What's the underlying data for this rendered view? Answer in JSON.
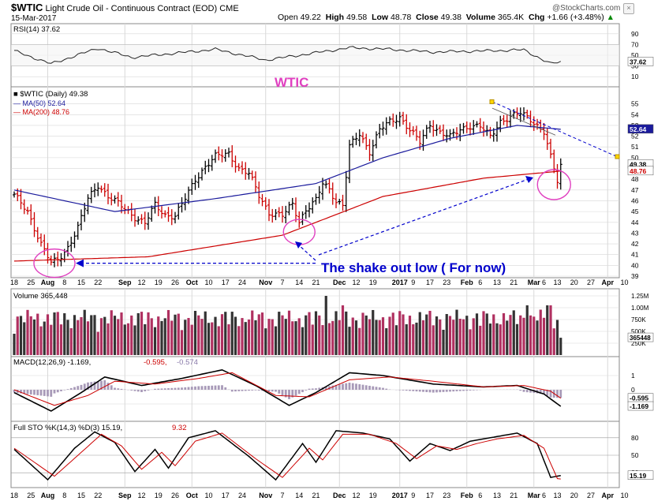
{
  "header": {
    "symbol": "$WTIC",
    "name": "Light Crude Oil - Continuous Contract (EOD)",
    "exchange": "CME",
    "date": "15-Mar-2017",
    "open_label": "Open",
    "open": "49.22",
    "high_label": "High",
    "high": "49.58",
    "low_label": "Low",
    "low": "48.78",
    "close_label": "Close",
    "close": "49.38",
    "volume_label": "Volume",
    "volume": "365.4K",
    "chg_label": "Chg",
    "chg": "+1.66 (+3.48%)",
    "up_arrow": "▲",
    "brand": "@StockCharts.com"
  },
  "colors": {
    "price_bar": "#000000",
    "down_bar": "#cc0000",
    "ma50": "#1a1a9c",
    "ma200": "#cc0000",
    "annotation": "#0000cc",
    "highlight": "#e040c0",
    "volume_up": "#333333",
    "volume_down": "#b03060",
    "grid": "#d8d8d8"
  },
  "annotations": {
    "title": "WTIC",
    "shakeout": "The shake out low  ( For now)"
  },
  "x_axis": {
    "ticks": [
      {
        "i": 0,
        "label": "18"
      },
      {
        "i": 5,
        "label": "25"
      },
      {
        "i": 10,
        "label": "Aug",
        "bold": true
      },
      {
        "i": 15,
        "label": "8"
      },
      {
        "i": 20,
        "label": "15"
      },
      {
        "i": 25,
        "label": "22"
      },
      {
        "i": 33,
        "label": "Sep",
        "bold": true
      },
      {
        "i": 38,
        "label": "12"
      },
      {
        "i": 43,
        "label": "19"
      },
      {
        "i": 48,
        "label": "26"
      },
      {
        "i": 53,
        "label": "Oct",
        "bold": true
      },
      {
        "i": 58,
        "label": "10"
      },
      {
        "i": 63,
        "label": "17"
      },
      {
        "i": 68,
        "label": "24"
      },
      {
        "i": 75,
        "label": "Nov",
        "bold": true
      },
      {
        "i": 80,
        "label": "7"
      },
      {
        "i": 85,
        "label": "14"
      },
      {
        "i": 90,
        "label": "21"
      },
      {
        "i": 97,
        "label": "Dec",
        "bold": true
      },
      {
        "i": 102,
        "label": "12"
      },
      {
        "i": 107,
        "label": "19"
      },
      {
        "i": 115,
        "label": "2017",
        "bold": true
      },
      {
        "i": 119,
        "label": "9"
      },
      {
        "i": 124,
        "label": "17"
      },
      {
        "i": 129,
        "label": "23"
      },
      {
        "i": 135,
        "label": "Feb",
        "bold": true
      },
      {
        "i": 139,
        "label": "6"
      },
      {
        "i": 144,
        "label": "13"
      },
      {
        "i": 149,
        "label": "21"
      },
      {
        "i": 155,
        "label": "Mar",
        "bold": true
      },
      {
        "i": 158,
        "label": "6"
      },
      {
        "i": 162,
        "label": "13"
      },
      {
        "i": 167,
        "label": "20"
      },
      {
        "i": 172,
        "label": "27"
      },
      {
        "i": 177,
        "label": "Apr",
        "bold": true
      },
      {
        "i": 182,
        "label": "10"
      }
    ]
  },
  "panels": {
    "rsi": {
      "legend": "RSI(14) 37.62",
      "ticks": [
        "90",
        "70",
        "50",
        "30",
        "10"
      ],
      "last": "37.62"
    },
    "price": {
      "legend_sym": "$WTIC (Daily) 49.38",
      "legend_ma50": "MA(50) 52.64",
      "legend_ma200": "MA(200) 48.76",
      "ticks": [
        "55",
        "54",
        "53",
        "52",
        "51",
        "50",
        "49",
        "48",
        "47",
        "46",
        "45",
        "44",
        "43",
        "42",
        "41",
        "40",
        "39"
      ],
      "last_price": "49.38",
      "last_ma50": "52.64",
      "last_ma200": "48.76"
    },
    "volume": {
      "legend": "Volume 365,448",
      "ticks": [
        "1.25M",
        "1.00M",
        "750K",
        "500K",
        "250K"
      ],
      "last": "365448"
    },
    "macd": {
      "legend_main": "MACD(12,26,9) -1.169,",
      "legend_signal": "-0.595,",
      "legend_hist": "-0.574",
      "ticks": [
        "1",
        "0",
        "-1"
      ],
      "last_signal": "-0.595",
      "last_macd": "-1.169"
    },
    "sto": {
      "legend_main": "Full STO %K(14,3) %D(3) 15.19,",
      "legend_d": "9.32",
      "ticks": [
        "80",
        "50",
        "20"
      ],
      "last": "15.19"
    }
  },
  "chart_data": {
    "type": "ohlc",
    "title": "$WTIC Light Crude Oil - Continuous Contract (EOD) CME",
    "n_bars": 164,
    "price_ylim": [
      39,
      56
    ],
    "anchors_close": [
      [
        0,
        46.5
      ],
      [
        4,
        45.0
      ],
      [
        8,
        42.0
      ],
      [
        11,
        40.2
      ],
      [
        13,
        40.5
      ],
      [
        16,
        41.7
      ],
      [
        19,
        43.5
      ],
      [
        22,
        46.2
      ],
      [
        25,
        47.5
      ],
      [
        28,
        46.4
      ],
      [
        32,
        45.5
      ],
      [
        36,
        44.5
      ],
      [
        39,
        43.9
      ],
      [
        42,
        45.6
      ],
      [
        45,
        44.7
      ],
      [
        48,
        44.6
      ],
      [
        51,
        46.2
      ],
      [
        54,
        48.0
      ],
      [
        57,
        49.2
      ],
      [
        60,
        50.1
      ],
      [
        64,
        50.4
      ],
      [
        67,
        49.0
      ],
      [
        70,
        48.5
      ],
      [
        73,
        46.5
      ],
      [
        76,
        44.9
      ],
      [
        80,
        44.6
      ],
      [
        83,
        45.7
      ],
      [
        85,
        44.1
      ],
      [
        87,
        45.2
      ],
      [
        90,
        46.0
      ],
      [
        92,
        47.6
      ],
      [
        94,
        47.1
      ],
      [
        96,
        46.0
      ],
      [
        98,
        45.6
      ],
      [
        100,
        51.0
      ],
      [
        103,
        52.2
      ],
      [
        106,
        50.6
      ],
      [
        109,
        52.6
      ],
      [
        112,
        53.3
      ],
      [
        115,
        53.8
      ],
      [
        118,
        52.6
      ],
      [
        121,
        51.4
      ],
      [
        124,
        53.1
      ],
      [
        127,
        52.4
      ],
      [
        130,
        51.9
      ],
      [
        133,
        52.6
      ],
      [
        136,
        53.0
      ],
      [
        139,
        52.9
      ],
      [
        142,
        51.9
      ],
      [
        145,
        53.4
      ],
      [
        148,
        53.8
      ],
      [
        151,
        54.1
      ],
      [
        154,
        53.6
      ],
      [
        156,
        53.0
      ],
      [
        158,
        52.4
      ],
      [
        160,
        50.0
      ],
      [
        162,
        47.8
      ],
      [
        163,
        49.38
      ]
    ],
    "ma50_anchors": [
      [
        0,
        47.0
      ],
      [
        30,
        45.0
      ],
      [
        60,
        46.2
      ],
      [
        90,
        47.6
      ],
      [
        110,
        50.0
      ],
      [
        130,
        51.8
      ],
      [
        150,
        53.0
      ],
      [
        163,
        52.64
      ]
    ],
    "ma200_anchors": [
      [
        0,
        40.4
      ],
      [
        40,
        40.8
      ],
      [
        80,
        42.8
      ],
      [
        110,
        46.4
      ],
      [
        140,
        48.1
      ],
      [
        163,
        48.76
      ]
    ],
    "rsi_anchors": [
      [
        0,
        58
      ],
      [
        11,
        34
      ],
      [
        25,
        63
      ],
      [
        35,
        46
      ],
      [
        45,
        52
      ],
      [
        60,
        61
      ],
      [
        75,
        41
      ],
      [
        85,
        50
      ],
      [
        100,
        64
      ],
      [
        112,
        61
      ],
      [
        125,
        56
      ],
      [
        140,
        58
      ],
      [
        152,
        60
      ],
      [
        160,
        34
      ],
      [
        163,
        37.62
      ]
    ],
    "macd_anchors": [
      [
        0,
        -0.2
      ],
      [
        11,
        -1.5
      ],
      [
        20,
        -0.2
      ],
      [
        27,
        0.9
      ],
      [
        38,
        0.3
      ],
      [
        50,
        0.8
      ],
      [
        62,
        1.4
      ],
      [
        72,
        0.3
      ],
      [
        82,
        -1.1
      ],
      [
        90,
        -0.2
      ],
      [
        100,
        1.2
      ],
      [
        110,
        1.0
      ],
      [
        125,
        0.4
      ],
      [
        140,
        0.2
      ],
      [
        150,
        0.3
      ],
      [
        158,
        -0.3
      ],
      [
        163,
        -1.169
      ]
    ],
    "signal_anchors": [
      [
        0,
        0.0
      ],
      [
        12,
        -1.1
      ],
      [
        22,
        -0.4
      ],
      [
        30,
        0.6
      ],
      [
        42,
        0.4
      ],
      [
        55,
        0.8
      ],
      [
        65,
        1.2
      ],
      [
        78,
        -0.4
      ],
      [
        88,
        -0.5
      ],
      [
        100,
        0.7
      ],
      [
        112,
        0.9
      ],
      [
        125,
        0.6
      ],
      [
        140,
        0.2
      ],
      [
        152,
        0.3
      ],
      [
        160,
        -0.1
      ],
      [
        163,
        -0.595
      ]
    ],
    "stok_anchors": [
      [
        0,
        60
      ],
      [
        10,
        8
      ],
      [
        18,
        62
      ],
      [
        24,
        90
      ],
      [
        30,
        72
      ],
      [
        36,
        22
      ],
      [
        42,
        60
      ],
      [
        46,
        28
      ],
      [
        52,
        80
      ],
      [
        60,
        92
      ],
      [
        70,
        48
      ],
      [
        78,
        8
      ],
      [
        86,
        70
      ],
      [
        90,
        38
      ],
      [
        96,
        92
      ],
      [
        104,
        88
      ],
      [
        112,
        78
      ],
      [
        118,
        40
      ],
      [
        124,
        70
      ],
      [
        130,
        58
      ],
      [
        136,
        74
      ],
      [
        142,
        80
      ],
      [
        150,
        88
      ],
      [
        156,
        70
      ],
      [
        160,
        12
      ],
      [
        163,
        15.19
      ]
    ],
    "stod_anchors": [
      [
        0,
        62
      ],
      [
        12,
        14
      ],
      [
        20,
        55
      ],
      [
        26,
        86
      ],
      [
        32,
        66
      ],
      [
        38,
        26
      ],
      [
        44,
        55
      ],
      [
        48,
        32
      ],
      [
        54,
        74
      ],
      [
        62,
        88
      ],
      [
        72,
        44
      ],
      [
        80,
        12
      ],
      [
        88,
        62
      ],
      [
        92,
        42
      ],
      [
        98,
        86
      ],
      [
        106,
        86
      ],
      [
        114,
        70
      ],
      [
        120,
        44
      ],
      [
        126,
        66
      ],
      [
        132,
        60
      ],
      [
        138,
        70
      ],
      [
        144,
        78
      ],
      [
        152,
        84
      ],
      [
        158,
        62
      ],
      [
        162,
        10
      ],
      [
        163,
        9.32
      ]
    ]
  }
}
